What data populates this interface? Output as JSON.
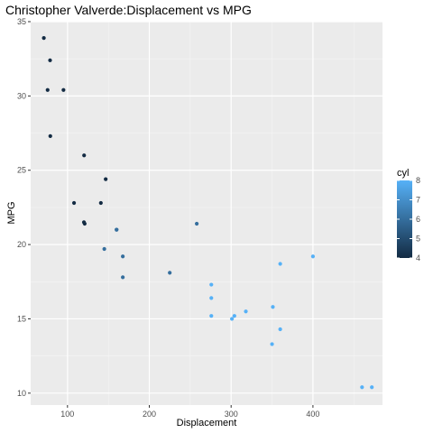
{
  "chart_data": {
    "type": "scatter",
    "title": "Christopher Valverde:Displacement vs MPG",
    "xlabel": "Displacement",
    "ylabel": "MPG",
    "xlim": [
      55,
      485
    ],
    "ylim": [
      9.2,
      35.0
    ],
    "x_ticks": [
      100,
      200,
      300,
      400
    ],
    "y_ticks": [
      10,
      15,
      20,
      25,
      30,
      35
    ],
    "grid": true,
    "background": "#ebebeb",
    "legend": {
      "title": "cyl",
      "placement": "right",
      "ticks": [
        4,
        5,
        6,
        7,
        8
      ],
      "range": [
        4,
        8
      ],
      "low_color": "#132b43",
      "high_color": "#56b1f7"
    },
    "points": [
      {
        "x": 160.0,
        "y": 21.0,
        "cyl": 6
      },
      {
        "x": 160.0,
        "y": 21.0,
        "cyl": 6
      },
      {
        "x": 108.0,
        "y": 22.8,
        "cyl": 4
      },
      {
        "x": 258.0,
        "y": 21.4,
        "cyl": 6
      },
      {
        "x": 360.0,
        "y": 18.7,
        "cyl": 8
      },
      {
        "x": 225.0,
        "y": 18.1,
        "cyl": 6
      },
      {
        "x": 360.0,
        "y": 14.3,
        "cyl": 8
      },
      {
        "x": 146.7,
        "y": 24.4,
        "cyl": 4
      },
      {
        "x": 140.8,
        "y": 22.8,
        "cyl": 4
      },
      {
        "x": 167.6,
        "y": 19.2,
        "cyl": 6
      },
      {
        "x": 167.6,
        "y": 17.8,
        "cyl": 6
      },
      {
        "x": 275.8,
        "y": 16.4,
        "cyl": 8
      },
      {
        "x": 275.8,
        "y": 17.3,
        "cyl": 8
      },
      {
        "x": 275.8,
        "y": 15.2,
        "cyl": 8
      },
      {
        "x": 472.0,
        "y": 10.4,
        "cyl": 8
      },
      {
        "x": 460.0,
        "y": 10.4,
        "cyl": 8
      },
      {
        "x": 78.7,
        "y": 32.4,
        "cyl": 4
      },
      {
        "x": 75.7,
        "y": 30.4,
        "cyl": 4
      },
      {
        "x": 71.1,
        "y": 33.9,
        "cyl": 4
      },
      {
        "x": 120.1,
        "y": 21.5,
        "cyl": 4
      },
      {
        "x": 318.0,
        "y": 15.5,
        "cyl": 8
      },
      {
        "x": 304.0,
        "y": 15.2,
        "cyl": 8
      },
      {
        "x": 350.0,
        "y": 13.3,
        "cyl": 8
      },
      {
        "x": 400.0,
        "y": 19.2,
        "cyl": 8
      },
      {
        "x": 79.0,
        "y": 27.3,
        "cyl": 4
      },
      {
        "x": 120.3,
        "y": 26.0,
        "cyl": 4
      },
      {
        "x": 95.1,
        "y": 30.4,
        "cyl": 4
      },
      {
        "x": 351.0,
        "y": 15.8,
        "cyl": 8
      },
      {
        "x": 145.0,
        "y": 19.7,
        "cyl": 6
      },
      {
        "x": 301.0,
        "y": 15.0,
        "cyl": 8
      },
      {
        "x": 121.0,
        "y": 21.4,
        "cyl": 4
      }
    ]
  }
}
